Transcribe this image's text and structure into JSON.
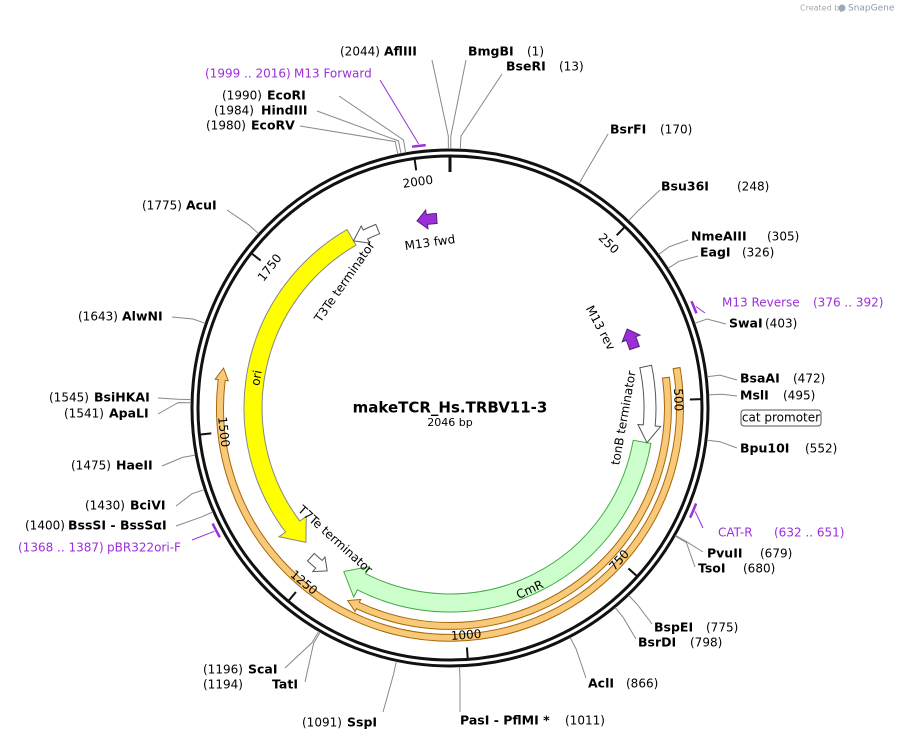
{
  "credit": "Created by",
  "brand": "SnapGene",
  "title": "makeTCR_Hs.TRBV11-3",
  "length": {
    "value": 2046,
    "label": "2046 bp"
  },
  "ticks": [
    250,
    500,
    750,
    1000,
    1250,
    1500,
    1750,
    2000
  ],
  "sites": [
    {
      "name": "AflIII",
      "pos": {
        "value": 2044,
        "label": "(2044)"
      }
    },
    {
      "name": "BmgBI",
      "pos": {
        "value": 1,
        "label": "(1)"
      }
    },
    {
      "name": "BseRI",
      "pos": {
        "value": 13,
        "label": "(13)"
      }
    },
    {
      "name": "BsrFI",
      "pos": {
        "value": 170,
        "label": "(170)"
      }
    },
    {
      "name": "Bsu36I",
      "pos": {
        "value": 248,
        "label": "(248)"
      }
    },
    {
      "name": "NmeAIII",
      "pos": {
        "value": 305,
        "label": "(305)"
      }
    },
    {
      "name": "EagI",
      "pos": {
        "value": 326,
        "label": "(326)"
      }
    },
    {
      "name": "SwaI",
      "pos": {
        "value": 403,
        "label": "(403)"
      }
    },
    {
      "name": "BsaAI",
      "pos": {
        "value": 472,
        "label": "(472)"
      }
    },
    {
      "name": "MslI",
      "pos": {
        "value": 495,
        "label": "(495)"
      }
    },
    {
      "name": "Bpu10I",
      "pos": {
        "value": 552,
        "label": "(552)"
      }
    },
    {
      "name": "PvuII",
      "pos": {
        "value": 679,
        "label": "(679)"
      }
    },
    {
      "name": "TsoI",
      "pos": {
        "value": 680,
        "label": "(680)"
      }
    },
    {
      "name": "BspEI",
      "pos": {
        "value": 775,
        "label": "(775)"
      }
    },
    {
      "name": "BsrDI",
      "pos": {
        "value": 798,
        "label": "(798)"
      }
    },
    {
      "name": "AclI",
      "pos": {
        "value": 866,
        "label": "(866)"
      }
    },
    {
      "name": "PasI  -  PflMI *",
      "pos": {
        "value": 1011,
        "label": "(1011)"
      }
    },
    {
      "name": "SspI",
      "pos": {
        "value": 1091,
        "label": "(1091)"
      }
    },
    {
      "name": "ScaI",
      "pos": {
        "value": 1196,
        "label": "(1196)"
      }
    },
    {
      "name": "TatI",
      "pos": {
        "value": 1194,
        "label": "(1194)"
      }
    },
    {
      "name": "BssSI  -  BssSαI",
      "pos": {
        "value": 1400,
        "label": "(1400)"
      }
    },
    {
      "name": "BciVI",
      "pos": {
        "value": 1430,
        "label": "(1430)"
      }
    },
    {
      "name": "HaeII",
      "pos": {
        "value": 1475,
        "label": "(1475)"
      }
    },
    {
      "name": "ApaLI",
      "pos": {
        "value": 1541,
        "label": "(1541)"
      }
    },
    {
      "name": "BsiHKAI",
      "pos": {
        "value": 1545,
        "label": "(1545)"
      }
    },
    {
      "name": "AlwNI",
      "pos": {
        "value": 1643,
        "label": "(1643)"
      }
    },
    {
      "name": "AcuI",
      "pos": {
        "value": 1775,
        "label": "(1775)"
      }
    },
    {
      "name": "EcoRV",
      "pos": {
        "value": 1980,
        "label": "(1980)"
      }
    },
    {
      "name": "HindIII",
      "pos": {
        "value": 1984,
        "label": "(1984)"
      }
    },
    {
      "name": "EcoRI",
      "pos": {
        "value": 1990,
        "label": "(1990)"
      }
    }
  ],
  "primers": [
    {
      "name": "M13 Forward",
      "range": [
        1999,
        2016
      ],
      "label": "(1999 .. 2016)"
    },
    {
      "name": "M13 Reverse",
      "range": [
        376,
        392
      ],
      "label": "(376 .. 392)"
    },
    {
      "name": "CAT-R",
      "range": [
        632,
        651
      ],
      "label": "(632 .. 651)"
    },
    {
      "name": "pBR322ori-F",
      "range": [
        1368,
        1387
      ],
      "label": "(1368 .. 1387)"
    }
  ],
  "features": [
    "T3Te terminator",
    "M13 fwd",
    "M13 rev",
    "tonB terminator",
    "cat promoter",
    "CmR",
    "ori",
    "T7Te terminator"
  ]
}
